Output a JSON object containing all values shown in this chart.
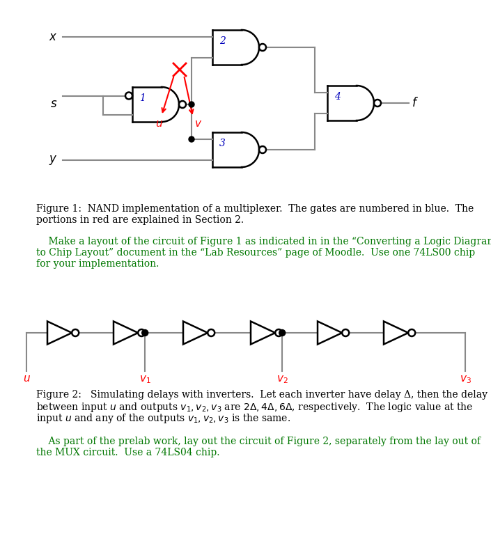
{
  "fig_width": 7.05,
  "fig_height": 7.77,
  "bg_color": "#ffffff",
  "text_color": "#000000",
  "blue_color": "#0000bb",
  "red_color": "#cc0000",
  "green_color": "#007700",
  "wire_color": "#888888",
  "gate_lw": 1.8,
  "wire_lw": 1.5,
  "fig1_cap_line1": "Figure 1:  NAND implementation of a multiplexer.  The gates are numbered in blue.  The",
  "fig1_cap_line2": "portions in red are explained in Section 2.",
  "green1_line1": "    Make a layout of the circuit of Figure 1 as indicated in in the “Converting a Logic Diagram",
  "green1_line2": "to Chip Layout” document in the “Lab Resources” page of Moodle.  Use one 74LS00 chip",
  "green1_line3": "for your implementation.",
  "fig2_cap_line1": "Figure 2:   Simulating delays with inverters.  Let each inverter have delay Δ, then the delay",
  "fig2_cap_line2": "between input $u$ and outputs $v_1, v_2, v_3$ are $2\\Delta, 4\\Delta, 6\\Delta$, respectively.  The logic value at the",
  "fig2_cap_line3": "input $u$ and any of the outputs $v_1, v_2, v_3$ is the same.",
  "green2_line1": "    As part of the prelab work, lay out the circuit of Figure 2, separately from the lay out of",
  "green2_line2": "the MUX circuit.  Use a 74LS04 chip."
}
